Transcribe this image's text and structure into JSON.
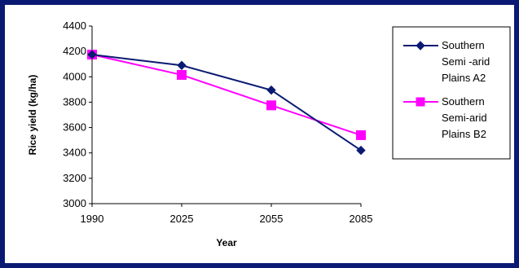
{
  "chart_data": {
    "type": "line",
    "xlabel": "Year",
    "ylabel": "Rice yield (kg/ha)",
    "categories": [
      "1990",
      "2025",
      "2055",
      "2085"
    ],
    "ylim": [
      3000,
      4400
    ],
    "yticks": [
      "3000",
      "3200",
      "3400",
      "3600",
      "3800",
      "4000",
      "4200",
      "4400"
    ],
    "grid": false,
    "legend_position": "right",
    "series": [
      {
        "name": "Southern Semi -arid Plains A2",
        "legend_lines": [
          "Southern",
          "Semi -arid",
          "Plains A2"
        ],
        "values": [
          4175,
          4090,
          3895,
          3420
        ],
        "color": "#0a1a73",
        "marker": "diamond"
      },
      {
        "name": "Southern Semi-arid Plains B2",
        "legend_lines": [
          "Southern",
          "Semi-arid",
          "Plains B2"
        ],
        "values": [
          4175,
          4015,
          3775,
          3540
        ],
        "color": "#ff00ff",
        "marker": "square"
      }
    ]
  }
}
